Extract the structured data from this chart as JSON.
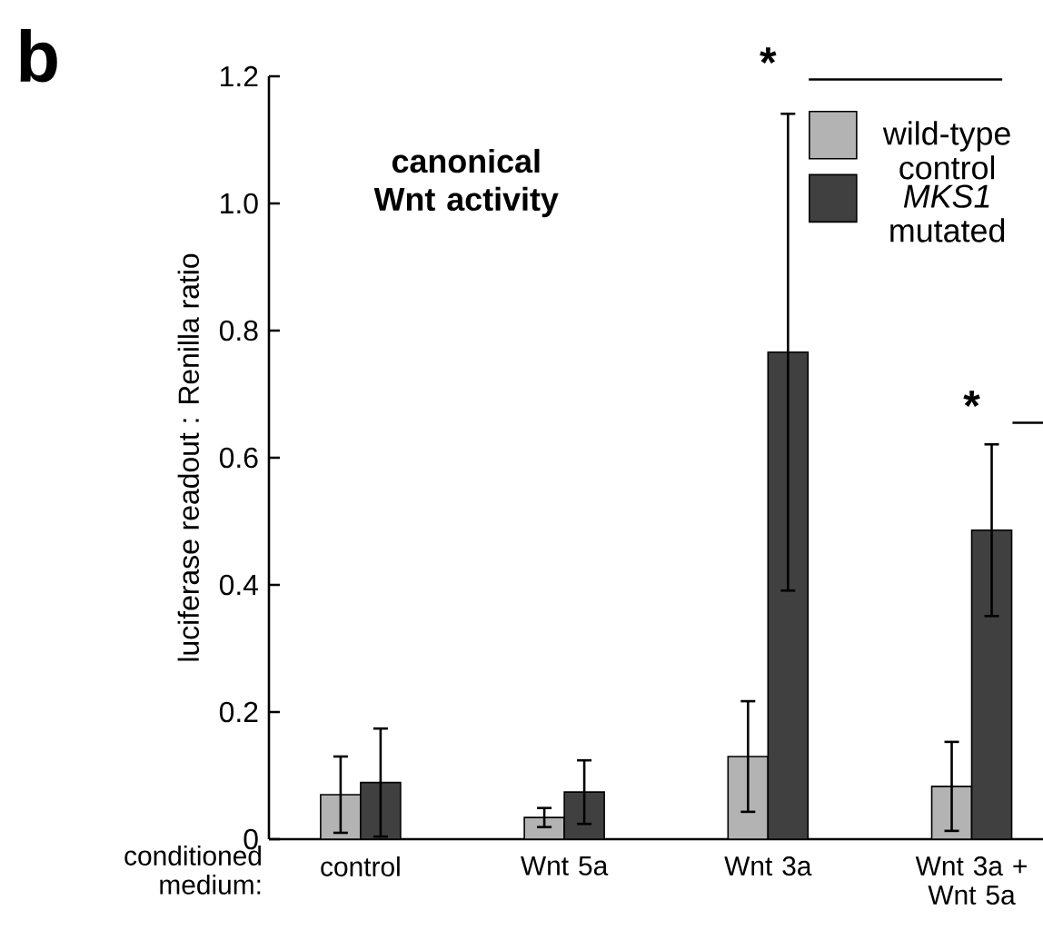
{
  "chart_data": {
    "type": "bar",
    "xlabel": "conditioned medium:",
    "ylabel": "luciferase readout : Renilla ratio",
    "categories": [
      "control",
      "Wnt 5a",
      "Wnt 3a",
      "Wnt 3a + Wnt 5a"
    ],
    "series": [
      {
        "name": "wild-type control",
        "color": "#b3b3b3",
        "values": [
          0.07,
          0.034,
          0.13,
          0.083
        ],
        "errors": [
          0.06,
          0.015,
          0.087,
          0.07
        ]
      },
      {
        "name": "*MKS1* mutated",
        "color": "#404040",
        "values": [
          0.089,
          0.074,
          0.766,
          0.486
        ],
        "errors": [
          0.085,
          0.05,
          0.375,
          0.135
        ]
      }
    ],
    "ylim": [
      0,
      1.2
    ],
    "yticks": [
      0,
      0.2,
      0.4,
      0.6,
      0.8,
      {
        "value": 1,
        "label": "1.0"
      },
      1.2
    ],
    "grid": false,
    "legend": "top right",
    "annotations": [
      "b",
      "canonical Wnt activity",
      "*",
      "*"
    ]
  }
}
